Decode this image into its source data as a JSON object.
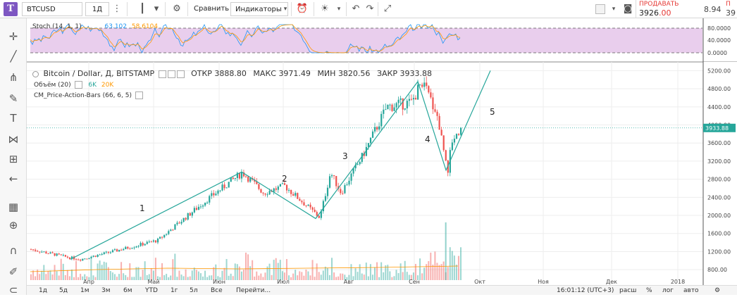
{
  "toolbar": {
    "logo": "T",
    "symbol": "BTCUSD",
    "interval": "1Д",
    "compare_label": "Сравнить",
    "indicators_label": "Индикаторы",
    "sell_label": "ПРОДАВАТЬ",
    "sell_price_int": "3926",
    "sell_price_dec": ".00",
    "right_value": "8.94",
    "right_value2": "39"
  },
  "stoch": {
    "title": "Stoch (14, 1, 1)",
    "value1": "63.102",
    "value2": "58.6104",
    "levels": [
      "80.0000",
      "40.0000",
      "0.0000"
    ]
  },
  "legend": {
    "main": "Bitcoin / Dollar, Д, BITSTAMP",
    "open_label": "ОТКР",
    "open": "3888.80",
    "high_label": "МАКС",
    "high": "3971.49",
    "low_label": "МИН",
    "low": "3820.56",
    "close_label": "ЗАКР",
    "close": "3933.88",
    "volume_label": "Объём (20)",
    "volume_v1": "6K",
    "volume_v2": "20K",
    "cm_label": "CM_Price-Action-Bars (66, 6, 5)"
  },
  "price_axis": {
    "labels": [
      "5200.00",
      "4800.00",
      "4400.00",
      "4000.00",
      "3600.00",
      "3200.00",
      "2800.00",
      "2400.00",
      "2000.00",
      "1600.00",
      "1200.00",
      "800.00"
    ],
    "current": "3933.88"
  },
  "time_axis": {
    "labels": [
      "Апр",
      "Май",
      "Июн",
      "Июл",
      "Авг",
      "Сен",
      "Окт",
      "Ноя",
      "Дек",
      "2018"
    ]
  },
  "waves": [
    "1",
    "2",
    "3",
    "4",
    "5"
  ],
  "colors": {
    "up": "#26a69a",
    "down": "#ef5350",
    "accent": "#26a69a",
    "stoch_bg": "#e1bee7",
    "sell": "#e53935"
  },
  "bottom": {
    "ranges": [
      "1д",
      "5д",
      "1м",
      "3м",
      "6м",
      "YTD",
      "1г",
      "5л",
      "Все"
    ],
    "goto": "Перейти...",
    "time": "16:01:12 (UTC+3)",
    "options": [
      "расш",
      "%",
      "лог",
      "авто"
    ]
  },
  "sidebar_icons": [
    "crosshair-icon",
    "trendline-icon",
    "pitchfork-icon",
    "brush-icon",
    "text-icon",
    "pattern-icon",
    "measure-icon",
    "arrow-left-icon",
    "ruler-icon",
    "zoom-icon",
    "magnet-icon",
    "lock-icon"
  ],
  "chart_data": {
    "type": "candlestick",
    "title": "Bitcoin / Dollar, Д, BITSTAMP",
    "approx_path": [
      {
        "x": "Мар",
        "y": 1200
      },
      {
        "x": "Апр",
        "y": 1050
      },
      {
        "x": "Май",
        "y": 1400
      },
      {
        "x": "Июн",
        "y": 2900
      },
      {
        "x": "Июл",
        "y": 2500
      },
      {
        "x": "Июл",
        "y": 1900
      },
      {
        "x": "Авг",
        "y": 2800
      },
      {
        "x": "Авг",
        "y": 4300
      },
      {
        "x": "Сен",
        "y": 4950
      },
      {
        "x": "Сен",
        "y": 3000
      },
      {
        "x": "Сен",
        "y": 3933.88
      }
    ],
    "ylim": [
      600,
      5300
    ]
  }
}
